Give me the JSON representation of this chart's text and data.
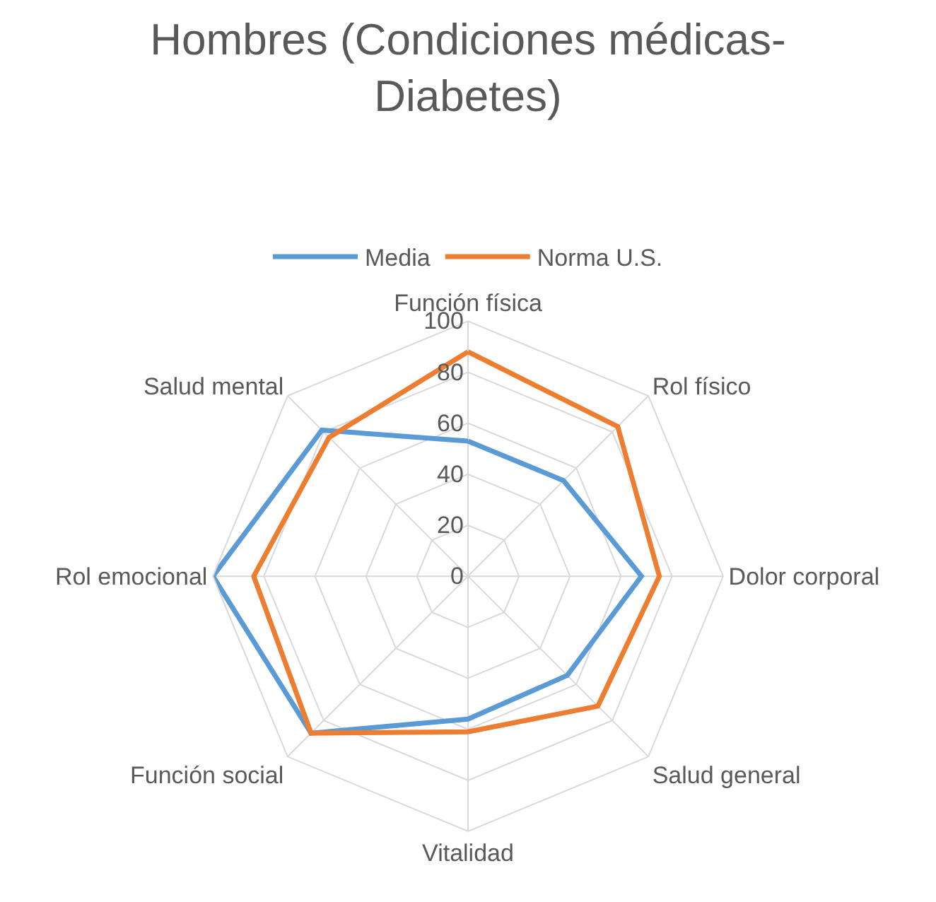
{
  "chart_data": {
    "type": "radar",
    "title": "Hombres (Condiciones médicas-Diabetes)",
    "categories": [
      "Función física",
      "Rol físico",
      "Dolor corporal",
      "Salud general",
      "Vitalidad",
      "Función social",
      "Rol emocional",
      "Salud mental"
    ],
    "series": [
      {
        "name": "Media",
        "color": "#5b9bd5",
        "values": [
          53,
          53,
          68,
          55,
          56,
          87,
          100,
          81
        ]
      },
      {
        "name": "Norma U.S.",
        "color": "#ed7d31",
        "values": [
          88,
          83,
          75,
          72,
          61,
          87,
          84,
          77
        ]
      }
    ],
    "ylim": [
      0,
      100
    ],
    "yticks": [
      0,
      20,
      40,
      60,
      80,
      100
    ],
    "grid": true,
    "legend": "top",
    "marker": "none"
  }
}
